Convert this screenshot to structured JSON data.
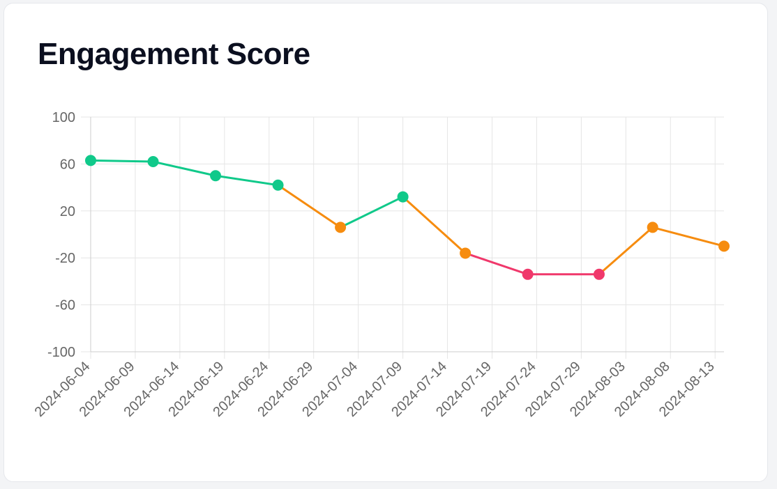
{
  "title": "Engagement Score",
  "colors": {
    "positive": "#10c98a",
    "neutral": "#f68c0f",
    "negative": "#f0386b",
    "grid": "#e5e5e5",
    "axis": "#cccccc",
    "tick_text": "#666666"
  },
  "chart_data": {
    "type": "line",
    "title": "Engagement Score",
    "xlabel": "",
    "ylabel": "",
    "ylim": [
      -100,
      100
    ],
    "yticks": [
      "100",
      "60",
      "20",
      "-20",
      "-60",
      "-100"
    ],
    "xlim": [
      "2024-06-04",
      "2024-08-14"
    ],
    "xticks": [
      "2024-06-04",
      "2024-06-09",
      "2024-06-14",
      "2024-06-19",
      "2024-06-24",
      "2024-06-29",
      "2024-07-04",
      "2024-07-09",
      "2024-07-14",
      "2024-07-19",
      "2024-07-24",
      "2024-07-29",
      "2024-08-03",
      "2024-08-08",
      "2024-08-13"
    ],
    "grid": true,
    "legend": "none",
    "points": [
      {
        "x": "2024-06-04",
        "y": 63,
        "status": "positive"
      },
      {
        "x": "2024-06-11",
        "y": 62,
        "status": "positive"
      },
      {
        "x": "2024-06-18",
        "y": 50,
        "status": "positive"
      },
      {
        "x": "2024-06-25",
        "y": 42,
        "status": "positive"
      },
      {
        "x": "2024-07-02",
        "y": 6,
        "status": "neutral"
      },
      {
        "x": "2024-07-09",
        "y": 32,
        "status": "positive"
      },
      {
        "x": "2024-07-16",
        "y": -16,
        "status": "neutral"
      },
      {
        "x": "2024-07-23",
        "y": -34,
        "status": "negative"
      },
      {
        "x": "2024-07-31",
        "y": -34,
        "status": "negative"
      },
      {
        "x": "2024-08-06",
        "y": 6,
        "status": "neutral"
      },
      {
        "x": "2024-08-14",
        "y": -10,
        "status": "neutral"
      }
    ]
  }
}
